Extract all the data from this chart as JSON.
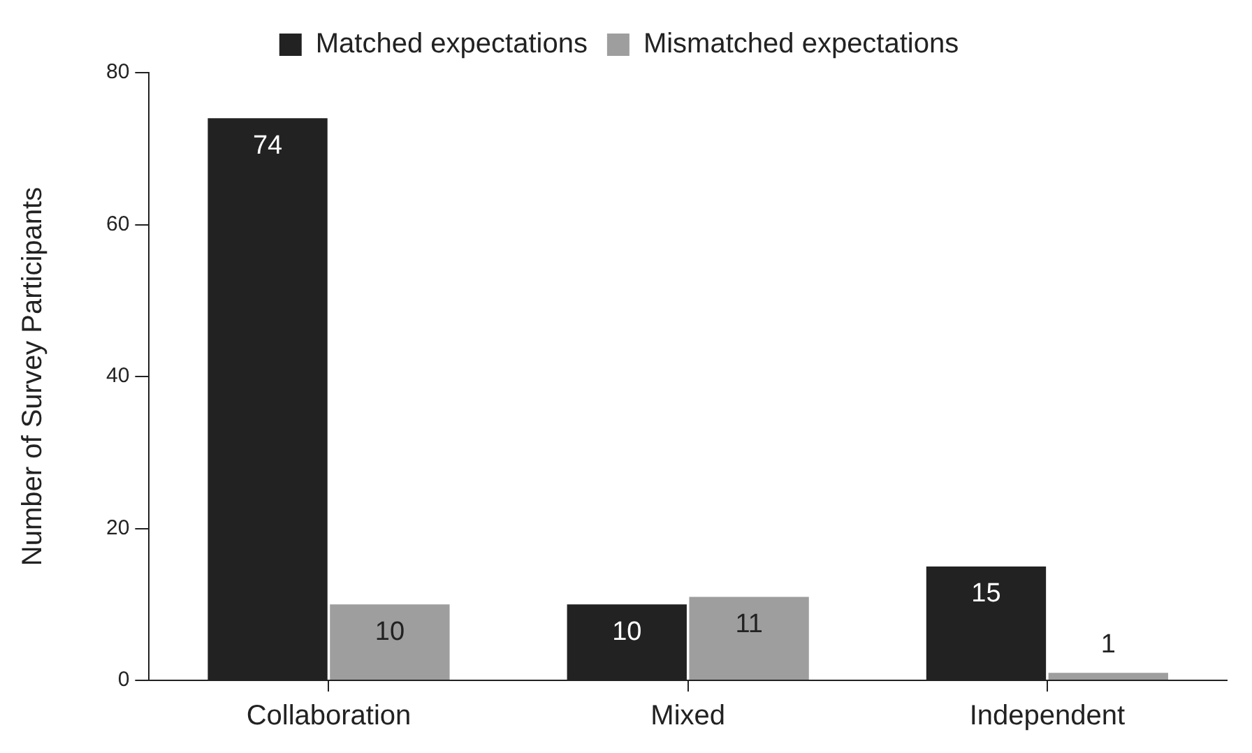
{
  "chart_data": {
    "type": "bar",
    "ylabel": "Number of Survey Participants",
    "categories": [
      "Collaboration",
      "Mixed",
      "Independent"
    ],
    "series": [
      {
        "name": "Matched expectations",
        "color": "#222222",
        "values": [
          74,
          10,
          15
        ]
      },
      {
        "name": "Mismatched expectations",
        "color": "#9e9e9e",
        "values": [
          10,
          11,
          1
        ]
      }
    ],
    "ylim": [
      0,
      80
    ],
    "yticks": [
      0,
      20,
      40,
      60,
      80
    ],
    "grid": false,
    "legend": "top",
    "data_labels": true
  }
}
